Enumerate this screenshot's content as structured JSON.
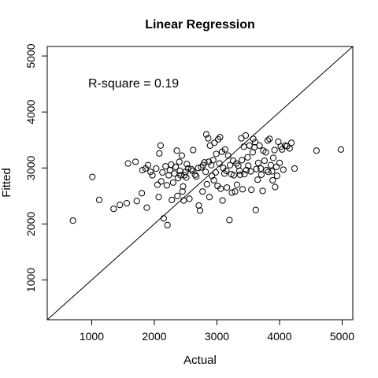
{
  "chart_data": {
    "type": "scatter",
    "title": "Linear Regression",
    "xlabel": "Actual",
    "ylabel": "Fitted",
    "xlim": [
      290,
      5170
    ],
    "ylim": [
      290,
      5170
    ],
    "xticks": [
      1000,
      2000,
      3000,
      4000,
      5000
    ],
    "yticks": [
      1000,
      2000,
      3000,
      4000,
      5000
    ],
    "annotation": "R-square = 0.19",
    "reference_line": "y = x",
    "grid": false,
    "legend": "none",
    "colors": {
      "points": "#000000",
      "line": "#000000",
      "frame": "#000000"
    },
    "points": [
      [
        700,
        2060
      ],
      [
        1010,
        2840
      ],
      [
        1120,
        2430
      ],
      [
        1350,
        2270
      ],
      [
        1450,
        2340
      ],
      [
        1560,
        2370
      ],
      [
        1580,
        3080
      ],
      [
        1700,
        3110
      ],
      [
        1720,
        2410
      ],
      [
        1800,
        2550
      ],
      [
        1810,
        2960
      ],
      [
        1860,
        2990
      ],
      [
        1880,
        2290
      ],
      [
        1900,
        3050
      ],
      [
        1940,
        2930
      ],
      [
        1970,
        2870
      ],
      [
        2030,
        2990
      ],
      [
        2050,
        2700
      ],
      [
        2070,
        2480
      ],
      [
        2080,
        3260
      ],
      [
        2100,
        3400
      ],
      [
        2110,
        2760
      ],
      [
        2130,
        2920
      ],
      [
        2150,
        2100
      ],
      [
        2180,
        3030
      ],
      [
        2200,
        2690
      ],
      [
        2210,
        1980
      ],
      [
        2230,
        2870
      ],
      [
        2250,
        2960
      ],
      [
        2270,
        3060
      ],
      [
        2280,
        2430
      ],
      [
        2300,
        2740
      ],
      [
        2320,
        2900
      ],
      [
        2340,
        3020
      ],
      [
        2360,
        3310
      ],
      [
        2370,
        2500
      ],
      [
        2380,
        2820
      ],
      [
        2400,
        3110
      ],
      [
        2410,
        2950
      ],
      [
        2420,
        2870
      ],
      [
        2440,
        3220
      ],
      [
        2450,
        2580
      ],
      [
        2460,
        2670
      ],
      [
        2470,
        2420
      ],
      [
        2480,
        2870
      ],
      [
        2500,
        2930
      ],
      [
        2510,
        2830
      ],
      [
        2520,
        3070
      ],
      [
        2540,
        2990
      ],
      [
        2560,
        2450
      ],
      [
        2590,
        2980
      ],
      [
        2610,
        2950
      ],
      [
        2620,
        3320
      ],
      [
        2650,
        2880
      ],
      [
        2670,
        2850
      ],
      [
        2700,
        3000
      ],
      [
        2710,
        2330
      ],
      [
        2730,
        2240
      ],
      [
        2750,
        3010
      ],
      [
        2770,
        2580
      ],
      [
        2780,
        3050
      ],
      [
        2800,
        3100
      ],
      [
        2820,
        2930
      ],
      [
        2830,
        3600
      ],
      [
        2840,
        2710
      ],
      [
        2860,
        3530
      ],
      [
        2870,
        3110
      ],
      [
        2880,
        2480
      ],
      [
        2890,
        3400
      ],
      [
        2910,
        3050
      ],
      [
        2920,
        2860
      ],
      [
        2940,
        3140
      ],
      [
        2950,
        2780
      ],
      [
        2960,
        3450
      ],
      [
        2980,
        2920
      ],
      [
        2990,
        3250
      ],
      [
        3010,
        2680
      ],
      [
        3020,
        3510
      ],
      [
        3040,
        3080
      ],
      [
        3050,
        3550
      ],
      [
        3060,
        2630
      ],
      [
        3080,
        3290
      ],
      [
        3090,
        2420
      ],
      [
        3100,
        3000
      ],
      [
        3120,
        2900
      ],
      [
        3130,
        3330
      ],
      [
        3150,
        2950
      ],
      [
        3160,
        2650
      ],
      [
        3180,
        3220
      ],
      [
        3200,
        2070
      ],
      [
        3210,
        3050
      ],
      [
        3230,
        2890
      ],
      [
        3240,
        2560
      ],
      [
        3260,
        3130
      ],
      [
        3270,
        2870
      ],
      [
        3290,
        2580
      ],
      [
        3310,
        3080
      ],
      [
        3320,
        2700
      ],
      [
        3340,
        3040
      ],
      [
        3360,
        2950
      ],
      [
        3370,
        2880
      ],
      [
        3390,
        3530
      ],
      [
        3400,
        3140
      ],
      [
        3410,
        2620
      ],
      [
        3430,
        3380
      ],
      [
        3440,
        2890
      ],
      [
        3460,
        3580
      ],
      [
        3470,
        2960
      ],
      [
        3490,
        3190
      ],
      [
        3500,
        3040
      ],
      [
        3520,
        3400
      ],
      [
        3540,
        2940
      ],
      [
        3550,
        2610
      ],
      [
        3570,
        3280
      ],
      [
        3580,
        3520
      ],
      [
        3600,
        3370
      ],
      [
        3610,
        3460
      ],
      [
        3620,
        2250
      ],
      [
        3630,
        2980
      ],
      [
        3650,
        2790
      ],
      [
        3660,
        3090
      ],
      [
        3680,
        3400
      ],
      [
        3700,
        2990
      ],
      [
        3710,
        2880
      ],
      [
        3730,
        2590
      ],
      [
        3740,
        3310
      ],
      [
        3760,
        3130
      ],
      [
        3780,
        3280
      ],
      [
        3790,
        2960
      ],
      [
        3810,
        3490
      ],
      [
        3820,
        2930
      ],
      [
        3840,
        3520
      ],
      [
        3860,
        3050
      ],
      [
        3880,
        2940
      ],
      [
        3890,
        2780
      ],
      [
        3900,
        3180
      ],
      [
        3920,
        3320
      ],
      [
        3930,
        2660
      ],
      [
        3950,
        3020
      ],
      [
        3960,
        2860
      ],
      [
        3980,
        3470
      ],
      [
        4000,
        3090
      ],
      [
        4020,
        3380
      ],
      [
        4040,
        3330
      ],
      [
        4060,
        2970
      ],
      [
        4090,
        3400
      ],
      [
        4120,
        3390
      ],
      [
        4160,
        3350
      ],
      [
        4190,
        3450
      ],
      [
        4240,
        2990
      ],
      [
        4590,
        3310
      ],
      [
        4980,
        3330
      ]
    ]
  }
}
